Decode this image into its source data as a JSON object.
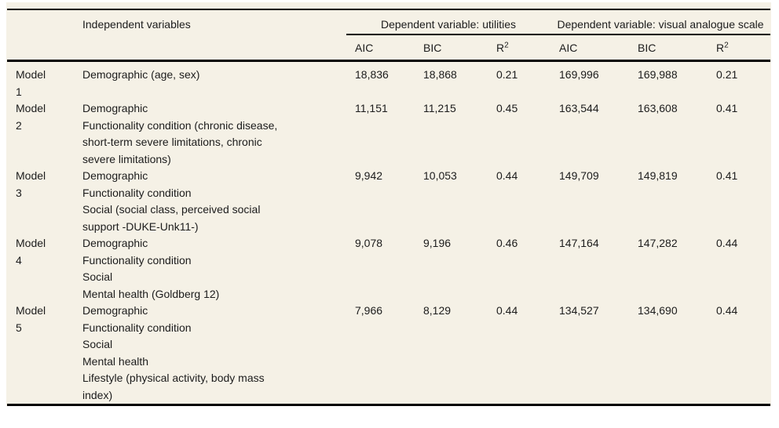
{
  "colors": {
    "panel_bg": "#f5f1e6",
    "text": "#1c1c1c",
    "rule": "#000000"
  },
  "header": {
    "independent": "Independent variables",
    "group_utilities": "Dependent variable: utilities",
    "group_vas": "Dependent variable: visual analogue scale",
    "aic": "AIC",
    "bic": "BIC",
    "r_base": "R",
    "r_sup": "2"
  },
  "rows": [
    {
      "model": "Model\n1",
      "vars": "Demographic (age, sex)",
      "u_aic": "18,836",
      "u_bic": "18,868",
      "u_r2": "0.21",
      "v_aic": "169,996",
      "v_bic": "169,988",
      "v_r2": "0.21"
    },
    {
      "model": "Model\n2",
      "vars": "Demographic\nFunctionality condition (chronic disease,\nshort-term severe limitations, chronic\nsevere limitations)",
      "u_aic": "11,151",
      "u_bic": "11,215",
      "u_r2": "0.45",
      "v_aic": "163,544",
      "v_bic": "163,608",
      "v_r2": "0.41"
    },
    {
      "model": "Model\n3",
      "vars": "Demographic\nFunctionality condition\nSocial (social class, perceived social\nsupport -DUKE-Unk11-)",
      "u_aic": "9,942",
      "u_bic": "10,053",
      "u_r2": "0.44",
      "v_aic": "149,709",
      "v_bic": "149,819",
      "v_r2": "0.41"
    },
    {
      "model": "Model\n4",
      "vars": "Demographic\nFunctionality condition\nSocial\nMental health (Goldberg 12)",
      "u_aic": "9,078",
      "u_bic": "9,196",
      "u_r2": "0.46",
      "v_aic": "147,164",
      "v_bic": "147,282",
      "v_r2": "0.44"
    },
    {
      "model": "Model\n5",
      "vars": "Demographic\nFunctionality condition\nSocial\nMental health\nLifestyle (physical activity, body mass\nindex)",
      "u_aic": "7,966",
      "u_bic": "8,129",
      "u_r2": "0.44",
      "v_aic": "134,527",
      "v_bic": "134,690",
      "v_r2": "0.44"
    }
  ]
}
